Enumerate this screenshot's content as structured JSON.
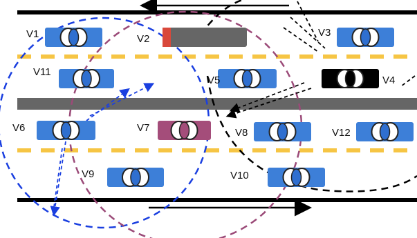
{
  "vehicles": [
    {
      "label": "V1"
    },
    {
      "label": "V2"
    },
    {
      "label": "V3"
    },
    {
      "label": "V11"
    },
    {
      "label": "V5"
    },
    {
      "label": "V4"
    },
    {
      "label": "V6"
    },
    {
      "label": "V7"
    },
    {
      "label": "V8"
    },
    {
      "label": "V12"
    },
    {
      "label": "V9"
    },
    {
      "label": "V10"
    }
  ]
}
